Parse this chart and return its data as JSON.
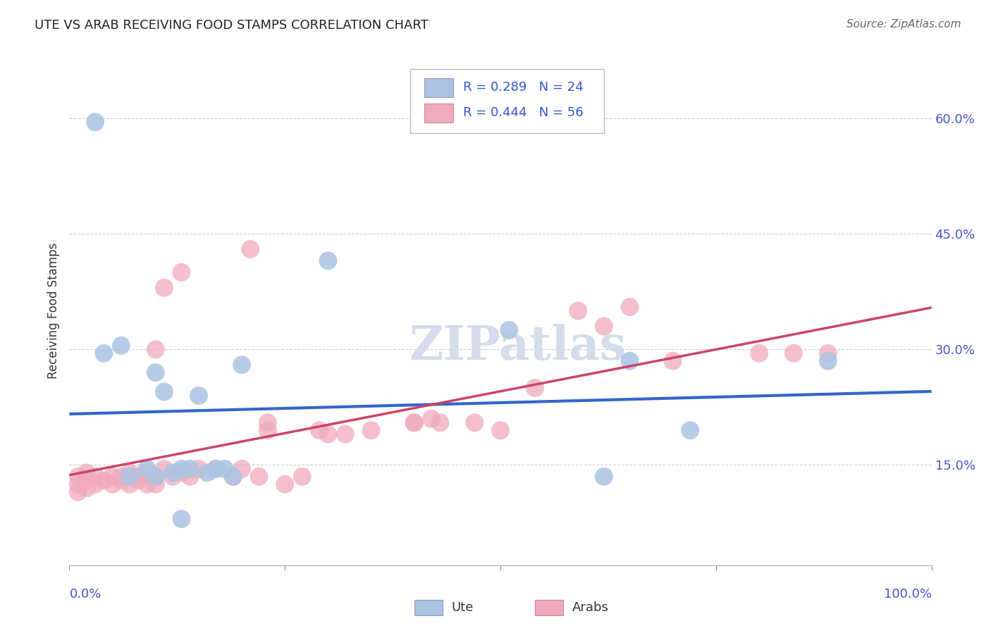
{
  "title": "UTE VS ARAB RECEIVING FOOD STAMPS CORRELATION CHART",
  "source": "Source: ZipAtlas.com",
  "ylabel": "Receiving Food Stamps",
  "y_tick_labels": [
    "15.0%",
    "30.0%",
    "45.0%",
    "60.0%"
  ],
  "y_tick_values": [
    0.15,
    0.3,
    0.45,
    0.6
  ],
  "xlim": [
    0.0,
    1.0
  ],
  "ylim": [
    0.02,
    0.68
  ],
  "ute_color": "#aac4e2",
  "arab_color": "#f0aabb",
  "ute_line_color": "#3366cc",
  "arab_line_color": "#cc4466",
  "ute_R": 0.289,
  "arab_R": 0.444,
  "ute_N": 24,
  "arab_N": 56,
  "background_color": "#ffffff",
  "grid_color": "#cccccc",
  "ute_points_x": [
    0.03,
    0.3,
    0.51,
    0.62,
    0.04,
    0.06,
    0.07,
    0.09,
    0.1,
    0.11,
    0.12,
    0.13,
    0.14,
    0.15,
    0.16,
    0.17,
    0.18,
    0.19,
    0.2,
    0.65,
    0.72,
    0.88,
    0.1,
    0.13
  ],
  "ute_points_y": [
    0.595,
    0.415,
    0.325,
    0.135,
    0.295,
    0.305,
    0.135,
    0.145,
    0.27,
    0.245,
    0.14,
    0.145,
    0.145,
    0.24,
    0.14,
    0.145,
    0.145,
    0.135,
    0.28,
    0.285,
    0.195,
    0.285,
    0.135,
    0.08
  ],
  "arab_points_x": [
    0.01,
    0.01,
    0.01,
    0.02,
    0.02,
    0.02,
    0.03,
    0.03,
    0.04,
    0.05,
    0.05,
    0.06,
    0.06,
    0.07,
    0.07,
    0.08,
    0.08,
    0.09,
    0.09,
    0.1,
    0.1,
    0.11,
    0.12,
    0.13,
    0.14,
    0.15,
    0.17,
    0.19,
    0.2,
    0.22,
    0.23,
    0.25,
    0.27,
    0.29,
    0.3,
    0.32,
    0.35,
    0.4,
    0.42,
    0.47,
    0.5,
    0.54,
    0.59,
    0.62,
    0.65,
    0.7,
    0.8,
    0.84,
    0.88,
    0.1,
    0.11,
    0.13,
    0.21,
    0.23,
    0.4,
    0.43
  ],
  "arab_points_y": [
    0.135,
    0.125,
    0.115,
    0.14,
    0.13,
    0.12,
    0.135,
    0.125,
    0.13,
    0.135,
    0.125,
    0.135,
    0.13,
    0.14,
    0.125,
    0.135,
    0.13,
    0.14,
    0.125,
    0.135,
    0.125,
    0.145,
    0.135,
    0.14,
    0.135,
    0.145,
    0.145,
    0.135,
    0.145,
    0.135,
    0.195,
    0.125,
    0.135,
    0.195,
    0.19,
    0.19,
    0.195,
    0.205,
    0.21,
    0.205,
    0.195,
    0.25,
    0.35,
    0.33,
    0.355,
    0.285,
    0.295,
    0.295,
    0.295,
    0.3,
    0.38,
    0.4,
    0.43,
    0.205,
    0.205,
    0.205
  ],
  "watermark": "ZIPatlas",
  "watermark_color": "#d0d8e8",
  "title_fontsize": 13,
  "axis_label_fontsize": 12,
  "tick_label_fontsize": 13,
  "legend_fontsize": 13
}
